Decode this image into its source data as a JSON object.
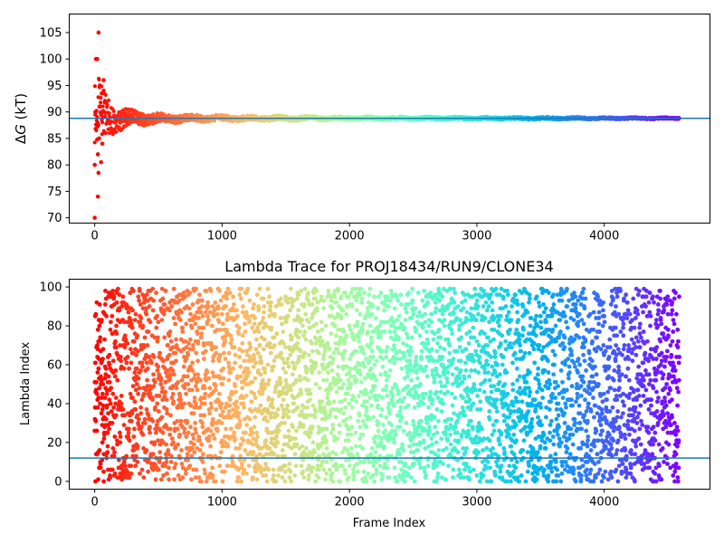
{
  "chart_data": [
    {
      "type": "scatter",
      "title": "",
      "xlabel": "",
      "ylabel": "ΔG (kT)",
      "xlim": [
        -200,
        4830
      ],
      "ylim": [
        69,
        108.5
      ],
      "xticks": [
        0,
        1000,
        2000,
        3000,
        4000
      ],
      "yticks": [
        70,
        75,
        80,
        85,
        90,
        95,
        100,
        105
      ],
      "colormap": "rainbow (red → orange → yellow → green → cyan → blue → purple, reversed along frame index)",
      "reference_line": {
        "y": 88.8,
        "color": "#1f77b4"
      },
      "n_frames": 4590,
      "outlier_points": [
        {
          "x": 0,
          "y": 70.0
        },
        {
          "x": 0,
          "y": 80.0
        },
        {
          "x": 5,
          "y": 90.0
        },
        {
          "x": 10,
          "y": 100.0
        },
        {
          "x": 20,
          "y": 100.0
        },
        {
          "x": 30,
          "y": 105.0
        },
        {
          "x": 25,
          "y": 74.0
        },
        {
          "x": 30,
          "y": 78.5
        },
        {
          "x": 25,
          "y": 82.0
        },
        {
          "x": 40,
          "y": 95.0
        },
        {
          "x": 35,
          "y": 85.0
        },
        {
          "x": 55,
          "y": 93.5
        },
        {
          "x": 70,
          "y": 96.0
        },
        {
          "x": 50,
          "y": 80.5
        },
        {
          "x": 60,
          "y": 84.0
        }
      ],
      "convergence_envelope": [
        {
          "x": 0,
          "half_width": 8.0
        },
        {
          "x": 60,
          "half_width": 4.5
        },
        {
          "x": 150,
          "half_width": 2.3
        },
        {
          "x": 300,
          "half_width": 1.3
        },
        {
          "x": 600,
          "half_width": 0.7
        },
        {
          "x": 1000,
          "half_width": 0.5
        },
        {
          "x": 2000,
          "half_width": 0.3
        },
        {
          "x": 4590,
          "half_width": 0.15
        }
      ]
    },
    {
      "type": "scatter",
      "title": "Lambda Trace for PROJ18434/RUN9/CLONE34",
      "xlabel": "Frame Index",
      "ylabel": "Lambda Index",
      "xlim": [
        -200,
        4830
      ],
      "ylim": [
        -4,
        104
      ],
      "xticks": [
        0,
        1000,
        2000,
        3000,
        4000
      ],
      "yticks": [
        0,
        20,
        40,
        60,
        80,
        100
      ],
      "value_range": [
        0,
        99
      ],
      "colormap": "rainbow (red → orange → yellow → green → cyan → blue → purple, reversed along frame index)",
      "reference_line": {
        "y": 12,
        "color": "#1f77b4"
      },
      "n_frames": 4590,
      "distribution": "approximately uniform random lambda index per frame"
    }
  ]
}
